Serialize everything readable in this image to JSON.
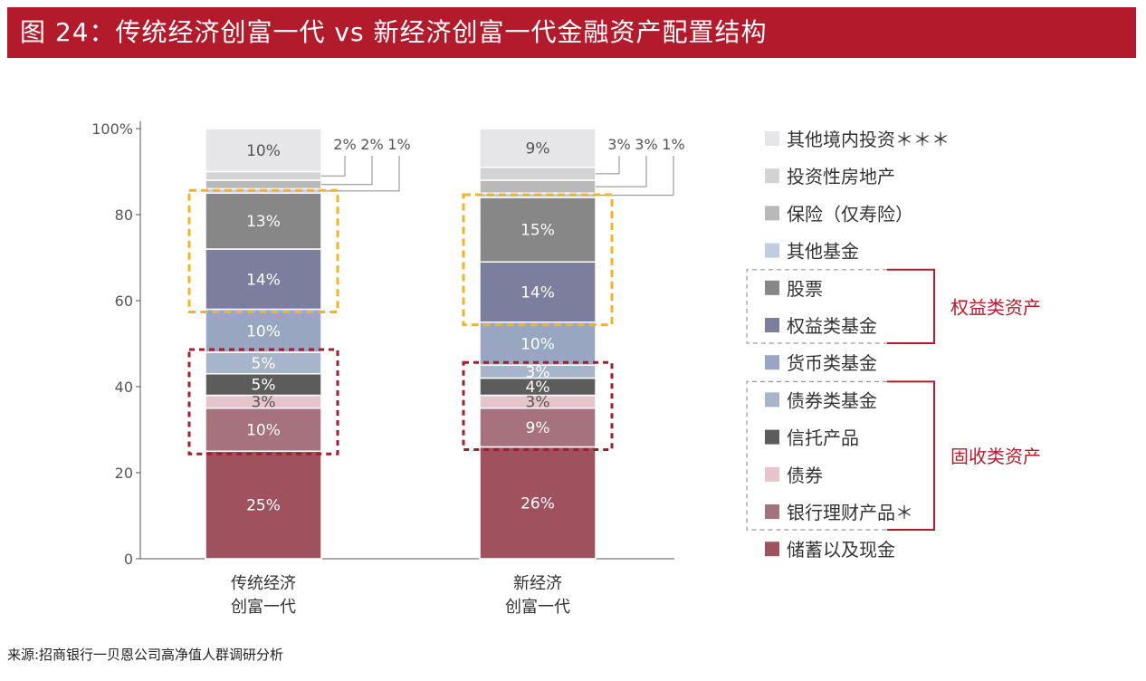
{
  "title": "图 24：传统经济创富一代 vs 新经济创富一代金融资产配置结构",
  "source": "来源:招商银行一贝恩公司高净值人群调研分析",
  "chart_data": {
    "type": "bar",
    "stacked": true,
    "title": "图 24：传统经济创富一代 vs 新经济创富一代金融资产配置结构",
    "categories": [
      {
        "line1": "传统经济",
        "line2": "创富一代"
      },
      {
        "line1": "新经济",
        "line2": "创富一代"
      }
    ],
    "ylim": [
      0,
      100
    ],
    "yticks": [
      "0",
      "20",
      "40",
      "60",
      "80",
      "100%"
    ],
    "series": [
      {
        "name": "储蓄以及现金",
        "values": [
          25,
          26
        ],
        "labels": [
          "25%",
          "26%"
        ],
        "color": "#a0515e"
      },
      {
        "name": "银行理财产品＊",
        "values": [
          10,
          9
        ],
        "labels": [
          "10%",
          "9%"
        ],
        "color": "#a6727e"
      },
      {
        "name": "债券",
        "values": [
          3,
          3
        ],
        "labels": [
          "3%",
          "3%"
        ],
        "color": "#e5c4cc"
      },
      {
        "name": "信托产品",
        "values": [
          5,
          4
        ],
        "labels": [
          "5%",
          "4%"
        ],
        "color": "#5c5c5c"
      },
      {
        "name": "债券类基金",
        "values": [
          5,
          3
        ],
        "labels": [
          "5%",
          "3%"
        ],
        "color": "#a7b5cb"
      },
      {
        "name": "货币类基金",
        "values": [
          10,
          10
        ],
        "labels": [
          "10%",
          "10%"
        ],
        "color": "#98a6c2"
      },
      {
        "name": "权益类基金",
        "values": [
          14,
          14
        ],
        "labels": [
          "14%",
          "14%"
        ],
        "color": "#7b7f9d"
      },
      {
        "name": "股票",
        "values": [
          13,
          15
        ],
        "labels": [
          "13%",
          "15%"
        ],
        "color": "#878787"
      },
      {
        "name": "其他基金",
        "values": [
          1,
          1
        ],
        "labels": [
          "1%",
          "1%"
        ],
        "color": "#bfcde0"
      },
      {
        "name": "保险（仅寿险）",
        "values": [
          2,
          3
        ],
        "labels": [
          "2%",
          "3%"
        ],
        "color": "#b9b9b9"
      },
      {
        "name": "投资性房地产",
        "values": [
          2,
          3
        ],
        "labels": [
          "2%",
          "3%"
        ],
        "color": "#d3d3d3"
      },
      {
        "name": "其他境内投资＊＊＊",
        "values": [
          10,
          9
        ],
        "labels": [
          "10%",
          "9%"
        ],
        "color": "#e6e6e8"
      }
    ],
    "legend_order": [
      "其他境内投资＊＊＊",
      "投资性房地产",
      "保险（仅寿险）",
      "其他基金",
      "股票",
      "权益类基金",
      "货币类基金",
      "债券类基金",
      "信托产品",
      "债券",
      "银行理财产品＊",
      "储蓄以及现金"
    ],
    "groups": [
      {
        "name": "权益类资产",
        "members": [
          "股票",
          "权益类基金"
        ],
        "color": "#b31b2c"
      },
      {
        "name": "固收类资产",
        "members": [
          "债券类基金",
          "信托产品",
          "债券",
          "银行理财产品＊"
        ],
        "color": "#b31b2c"
      }
    ],
    "highlight_colors": {
      "equity": "#f0b429",
      "fixed_income": "#a01e2d"
    }
  }
}
